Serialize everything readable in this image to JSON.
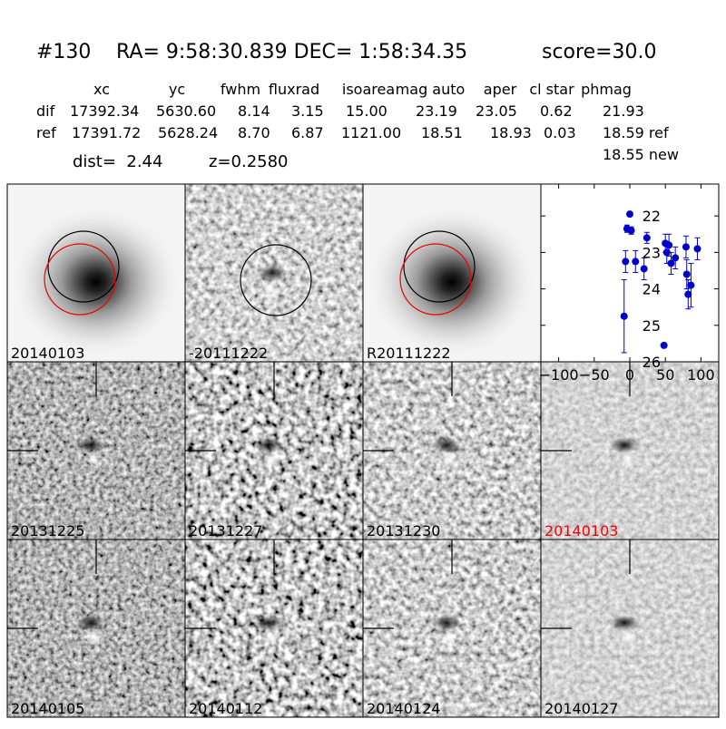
{
  "header": {
    "title_id": "#130",
    "title_coords": "RA= 9:58:30.839 DEC= 1:58:34.35",
    "title_score": "score=30.0"
  },
  "table": {
    "columns": [
      "xc",
      "yc",
      "fwhm",
      "fluxrad",
      "isoarea",
      "mag auto",
      "aper",
      "cl star",
      "phmag"
    ],
    "rows": [
      {
        "label": "dif",
        "cells": [
          "17392.34",
          "5630.60",
          "8.14",
          "3.15",
          "15.00",
          "23.19",
          "23.05",
          "0.62",
          "21.93"
        ]
      },
      {
        "label": "ref",
        "cells": [
          "17391.72",
          "5628.24",
          "8.70",
          "6.87",
          "1121.00",
          "18.51",
          "18.93",
          "0.03",
          "18.59 ref"
        ]
      }
    ],
    "extra": "18.55 new"
  },
  "dist": "dist=  2.44",
  "redshift": "z=0.2580",
  "panels": [
    "20140103",
    "-20111222",
    "R20111222",
    "20131225",
    "20131227",
    "20131230",
    "20140103",
    "20140105",
    "20140112",
    "20140124",
    "20140127"
  ],
  "chart_data": {
    "type": "scatter",
    "color": "#0000cc",
    "x": [
      -8,
      -6,
      -4,
      0,
      2,
      8,
      20,
      24,
      48,
      50,
      52,
      55,
      58,
      64,
      79,
      80,
      82,
      86,
      95
    ],
    "values": [
      24.75,
      23.25,
      22.35,
      21.95,
      22.4,
      23.25,
      23.45,
      22.6,
      25.55,
      22.75,
      23.0,
      22.8,
      23.3,
      23.15,
      22.85,
      23.6,
      24.15,
      23.9,
      22.9
    ],
    "errors": [
      1.0,
      0.3,
      0.1,
      0.05,
      0.1,
      0.3,
      0.3,
      0.15,
      0.05,
      0.25,
      0.3,
      0.3,
      0.3,
      0.3,
      0.3,
      0.4,
      0.4,
      0.6,
      0.3
    ],
    "xlim": [
      -125,
      125
    ],
    "ylim": [
      26,
      21.125
    ],
    "xticks": [
      {
        "value": -100,
        "label": "−100"
      },
      {
        "value": -50,
        "label": "−50"
      },
      0,
      50,
      100
    ],
    "yticks": [
      22,
      23,
      24,
      25,
      26
    ]
  }
}
